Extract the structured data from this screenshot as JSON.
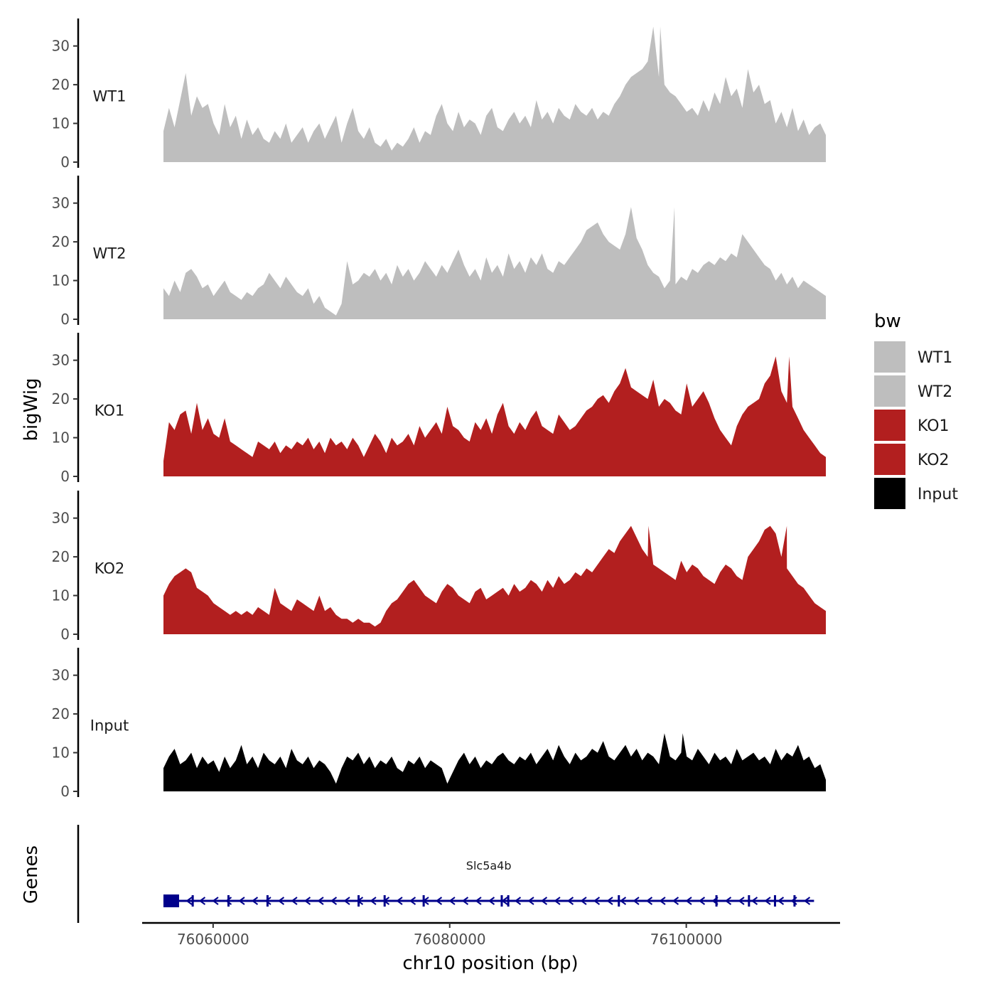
{
  "chart_data": {
    "type": "area",
    "description_title": "",
    "ylabel": "bigWig",
    "genes_label": "Genes",
    "xlabel": "chr10 position (bp)",
    "xlim": [
      76054000,
      76113000
    ],
    "data_range": [
      76055800,
      76111800
    ],
    "x_ticks": [
      76060000,
      76080000,
      76100000
    ],
    "x_tick_labels": [
      "76060000",
      "76080000",
      "76100000"
    ],
    "ylim": [
      0,
      36
    ],
    "y_ticks": [
      0,
      10,
      20,
      30
    ],
    "y_tick_labels": [
      "0",
      "10",
      "20",
      "30"
    ],
    "grid": false,
    "legend": {
      "title": "bw",
      "position": "right",
      "entries": [
        {
          "label": "WT1",
          "color": "#bebebe"
        },
        {
          "label": "WT2",
          "color": "#bebebe"
        },
        {
          "label": "KO1",
          "color": "#b21f1f"
        },
        {
          "label": "KO2",
          "color": "#b21f1f"
        },
        {
          "label": "Input",
          "color": "#000000"
        }
      ]
    },
    "series": [
      {
        "name": "WT1",
        "color": "#bebebe",
        "values": [
          8,
          14,
          9,
          16,
          23,
          12,
          17,
          14,
          15,
          10,
          7,
          15,
          9,
          12,
          6,
          11,
          7,
          9,
          6,
          5,
          8,
          6,
          10,
          5,
          7,
          9,
          5,
          8,
          10,
          6,
          9,
          12,
          5,
          10,
          14,
          8,
          6,
          9,
          5,
          4,
          6,
          3,
          5,
          4,
          6,
          9,
          5,
          8,
          7,
          12,
          15,
          10,
          8,
          13,
          9,
          11,
          10,
          7,
          12,
          14,
          9,
          8,
          11,
          13,
          10,
          12,
          9,
          16,
          11,
          13,
          10,
          14,
          12,
          11,
          15,
          13,
          12,
          14,
          11,
          13,
          12,
          15,
          17,
          20,
          22,
          23,
          24,
          26,
          35,
          22,
          20,
          18,
          17,
          15,
          13,
          14,
          12,
          16,
          13,
          18,
          15,
          22,
          17,
          19,
          14,
          24,
          18,
          20,
          15,
          16,
          10,
          13,
          9,
          14,
          8,
          11,
          7,
          9,
          10,
          7
        ],
        "peaks": [
          {
            "x": 76097800,
            "y": 35
          }
        ]
      },
      {
        "name": "WT2",
        "color": "#bebebe",
        "values": [
          8,
          6,
          10,
          7,
          12,
          13,
          11,
          8,
          9,
          6,
          8,
          10,
          7,
          6,
          5,
          7,
          6,
          8,
          9,
          12,
          10,
          8,
          11,
          9,
          7,
          6,
          8,
          4,
          6,
          3,
          2,
          1,
          4,
          15,
          9,
          10,
          12,
          11,
          13,
          10,
          12,
          9,
          14,
          11,
          13,
          10,
          12,
          15,
          13,
          11,
          14,
          12,
          15,
          18,
          14,
          11,
          13,
          10,
          16,
          12,
          14,
          11,
          17,
          13,
          15,
          12,
          16,
          14,
          17,
          13,
          12,
          15,
          14,
          16,
          18,
          20,
          23,
          24,
          25,
          22,
          20,
          19,
          18,
          22,
          29,
          21,
          18,
          14,
          12,
          11,
          8,
          10,
          9,
          11,
          10,
          13,
          12,
          14,
          15,
          14,
          16,
          15,
          17,
          16,
          22,
          20,
          18,
          16,
          14,
          13,
          10,
          12,
          9,
          11,
          8,
          10,
          9,
          8,
          7,
          6
        ],
        "peaks": [
          {
            "x": 76099000,
            "y": 29
          }
        ]
      },
      {
        "name": "KO1",
        "color": "#b21f1f",
        "values": [
          4,
          14,
          12,
          16,
          17,
          11,
          19,
          12,
          15,
          11,
          10,
          15,
          9,
          8,
          7,
          6,
          5,
          9,
          8,
          7,
          9,
          6,
          8,
          7,
          9,
          8,
          10,
          7,
          9,
          6,
          10,
          8,
          9,
          7,
          10,
          8,
          5,
          8,
          11,
          9,
          6,
          10,
          8,
          9,
          11,
          8,
          13,
          10,
          12,
          14,
          11,
          18,
          13,
          12,
          10,
          9,
          14,
          12,
          15,
          11,
          16,
          19,
          13,
          11,
          14,
          12,
          15,
          17,
          13,
          12,
          11,
          16,
          14,
          12,
          13,
          15,
          17,
          18,
          20,
          21,
          19,
          22,
          24,
          28,
          23,
          22,
          21,
          20,
          25,
          18,
          20,
          19,
          17,
          16,
          24,
          18,
          20,
          22,
          19,
          15,
          12,
          10,
          8,
          13,
          16,
          18,
          19,
          20,
          24,
          26,
          31,
          22,
          19,
          18,
          15,
          12,
          10,
          8,
          6,
          5
        ],
        "peaks": [
          {
            "x": 76108700,
            "y": 31
          }
        ]
      },
      {
        "name": "KO2",
        "color": "#b21f1f",
        "values": [
          10,
          13,
          15,
          16,
          17,
          16,
          12,
          11,
          10,
          8,
          7,
          6,
          5,
          6,
          5,
          6,
          5,
          7,
          6,
          5,
          12,
          8,
          7,
          6,
          9,
          8,
          7,
          6,
          10,
          6,
          7,
          5,
          4,
          4,
          3,
          4,
          3,
          3,
          2,
          3,
          6,
          8,
          9,
          11,
          13,
          14,
          12,
          10,
          9,
          8,
          11,
          13,
          12,
          10,
          9,
          8,
          11,
          12,
          9,
          10,
          11,
          12,
          10,
          13,
          11,
          12,
          14,
          13,
          11,
          14,
          12,
          15,
          13,
          14,
          16,
          15,
          17,
          16,
          18,
          20,
          22,
          21,
          24,
          26,
          28,
          25,
          22,
          20,
          18,
          17,
          16,
          15,
          14,
          19,
          16,
          18,
          17,
          15,
          14,
          13,
          16,
          18,
          17,
          15,
          14,
          20,
          22,
          24,
          27,
          28,
          26,
          20,
          17,
          15,
          13,
          12,
          10,
          8,
          7,
          6
        ],
        "peaks": [
          {
            "x": 76096800,
            "y": 28
          },
          {
            "x": 76108500,
            "y": 28
          }
        ]
      },
      {
        "name": "Input",
        "color": "#000000",
        "values": [
          6,
          9,
          11,
          7,
          8,
          10,
          6,
          9,
          7,
          8,
          5,
          9,
          6,
          8,
          12,
          7,
          9,
          6,
          10,
          8,
          7,
          9,
          6,
          11,
          8,
          7,
          9,
          6,
          8,
          7,
          5,
          2,
          6,
          9,
          8,
          10,
          7,
          9,
          6,
          8,
          7,
          9,
          6,
          5,
          8,
          7,
          9,
          6,
          8,
          7,
          6,
          2,
          5,
          8,
          10,
          7,
          9,
          6,
          8,
          7,
          9,
          10,
          8,
          7,
          9,
          8,
          10,
          7,
          9,
          11,
          8,
          12,
          9,
          7,
          10,
          8,
          9,
          11,
          10,
          13,
          9,
          8,
          10,
          12,
          9,
          11,
          8,
          10,
          9,
          7,
          15,
          9,
          8,
          10,
          9,
          8,
          11,
          9,
          7,
          10,
          8,
          9,
          7,
          11,
          8,
          9,
          10,
          8,
          9,
          7,
          11,
          8,
          10,
          9,
          12,
          8,
          9,
          6,
          7,
          3
        ],
        "peaks": [
          {
            "x": 76099700,
            "y": 15
          }
        ]
      }
    ],
    "genes": [
      {
        "name": "Slc5a4b",
        "start": 76055800,
        "end": 76110800,
        "strand": "-",
        "color": "#00008b"
      }
    ]
  }
}
